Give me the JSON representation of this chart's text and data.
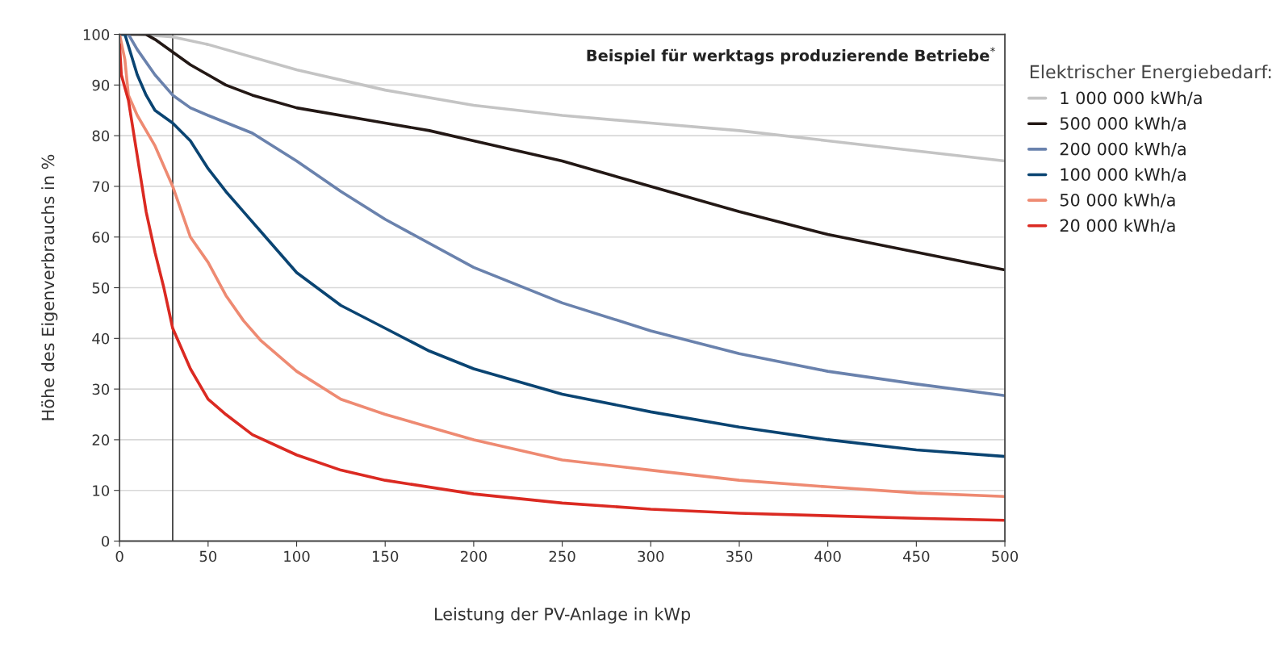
{
  "chart_data": {
    "type": "line",
    "xlabel": "Leistung der PV-Anlage in kWp",
    "ylabel": "Höhe des Eigenverbrauchs in %",
    "legend_title": "Elektrischer Energiebedarf:",
    "annotations": [
      "Beispiel für werktags produzierende Betriebe$^{*}$"
    ],
    "xlim": [
      0,
      500
    ],
    "xticks": [
      0,
      50,
      100,
      150,
      200,
      250,
      300,
      350,
      400,
      450,
      500
    ],
    "ylim": [
      0,
      100
    ],
    "yticks": [
      0,
      10,
      20,
      30,
      40,
      50,
      60,
      70,
      80,
      90,
      100
    ],
    "grid": "y",
    "legend": "right",
    "marker": "none",
    "line_style": "solid",
    "ref_lines": [
      {
        "axis": "x",
        "value": 30,
        "color": "#333333"
      }
    ],
    "series": [
      {
        "name": "1 000 000 kWh/a",
        "color": "#c4c4c4",
        "x": [
          0,
          10,
          30,
          50,
          100,
          150,
          200,
          250,
          300,
          350,
          400,
          450,
          500
        ],
        "values": [
          100,
          100,
          99.5,
          98,
          93,
          89,
          86,
          84,
          82.5,
          81,
          79,
          77,
          75
        ]
      },
      {
        "name": "500 000 kWh/a",
        "color": "#231815",
        "x": [
          0,
          15,
          20,
          30,
          40,
          50,
          60,
          75,
          100,
          150,
          175,
          200,
          250,
          300,
          350,
          400,
          450,
          500
        ],
        "values": [
          100,
          100,
          99,
          96.5,
          94,
          92,
          90,
          88,
          85.5,
          82.5,
          81,
          79,
          75,
          70,
          65,
          60.5,
          57,
          53.5
        ]
      },
      {
        "name": "200 000 kWh/a",
        "color": "#6a82ad",
        "x": [
          0,
          5,
          10,
          20,
          30,
          40,
          50,
          75,
          100,
          125,
          150,
          200,
          250,
          300,
          350,
          400,
          450,
          500
        ],
        "values": [
          100,
          100,
          97,
          92,
          88,
          85.5,
          84,
          80.5,
          75,
          69,
          63.5,
          54,
          47,
          41.5,
          37,
          33.5,
          31,
          28.7
        ]
      },
      {
        "name": "100 000 kWh/a",
        "color": "#0a4472",
        "x": [
          0,
          3,
          10,
          15,
          20,
          30,
          40,
          50,
          60,
          70,
          80,
          100,
          125,
          150,
          175,
          200,
          250,
          300,
          350,
          400,
          450,
          500
        ],
        "values": [
          100,
          100,
          92,
          88,
          85,
          82.5,
          79,
          73.5,
          69,
          65,
          61,
          53,
          46.5,
          42,
          37.5,
          34,
          29,
          25.5,
          22.5,
          20,
          18,
          16.7
        ]
      },
      {
        "name": "50 000 kWh/a",
        "color": "#ee8a72",
        "x": [
          0,
          3,
          5,
          10,
          20,
          30,
          40,
          50,
          60,
          70,
          80,
          100,
          125,
          150,
          200,
          250,
          300,
          350,
          400,
          450,
          500
        ],
        "values": [
          100,
          95,
          88,
          84,
          78,
          70,
          60,
          55,
          48.5,
          43.5,
          39.5,
          33.5,
          28,
          25,
          20,
          16,
          14,
          12,
          10.7,
          9.5,
          8.8
        ]
      },
      {
        "name": "20 000 kWh/a",
        "color": "#db2a22",
        "x": [
          0,
          1,
          5,
          10,
          15,
          20,
          25,
          30,
          40,
          50,
          60,
          75,
          100,
          125,
          150,
          200,
          250,
          300,
          350,
          400,
          450,
          500
        ],
        "values": [
          98,
          92,
          87,
          76,
          65,
          57,
          50,
          42,
          34,
          28,
          25,
          21,
          17,
          14,
          12,
          9.3,
          7.5,
          6.3,
          5.5,
          5,
          4.5,
          4.1
        ]
      }
    ]
  }
}
